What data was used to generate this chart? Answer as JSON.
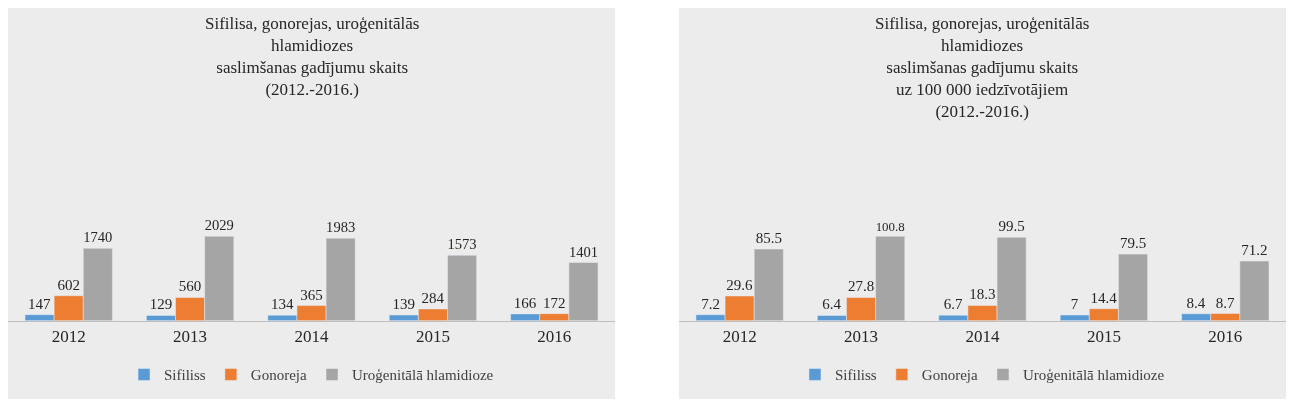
{
  "chart_data": [
    {
      "type": "bar",
      "title": "Sifilisa, gonorejas, uroģenitālās\nhlamidiozes\nsaslimšanas gadījumu skaits\n(2012.-2016.)",
      "categories": [
        "2012",
        "2013",
        "2014",
        "2015",
        "2016"
      ],
      "series": [
        {
          "name": "Sifiliss",
          "color": "#5b9bd5",
          "values": [
            147,
            129,
            134,
            139,
            166
          ]
        },
        {
          "name": "Gonoreja",
          "color": "#ed7d31",
          "values": [
            602,
            560,
            365,
            284,
            172
          ]
        },
        {
          "name": "Uroģenitālā hlamidioze",
          "color": "#a5a5a5",
          "values": [
            1740,
            2029,
            1983,
            1573,
            1401
          ]
        }
      ],
      "data_labels": true,
      "legend": "bottom",
      "grid": false
    },
    {
      "type": "bar",
      "title": "Sifilisa, gonorejas, uroģenitālās\nhlamidiozes\nsaslimšanas gadījumu skaits\nuz 100 000 iedzīvotājiem\n(2012.-2016.)",
      "categories": [
        "2012",
        "2013",
        "2014",
        "2015",
        "2016"
      ],
      "series": [
        {
          "name": "Sifiliss",
          "color": "#5b9bd5",
          "values": [
            7.2,
            6.4,
            6.7,
            7,
            8.4
          ]
        },
        {
          "name": "Gonoreja",
          "color": "#ed7d31",
          "values": [
            29.6,
            27.8,
            18.3,
            14.4,
            8.7
          ]
        },
        {
          "name": "Uroģenitālā hlamidioze",
          "color": "#a5a5a5",
          "values": [
            85.5,
            100.8,
            99.5,
            79.5,
            71.2
          ]
        }
      ],
      "data_labels": true,
      "legend": "bottom",
      "grid": false
    }
  ]
}
